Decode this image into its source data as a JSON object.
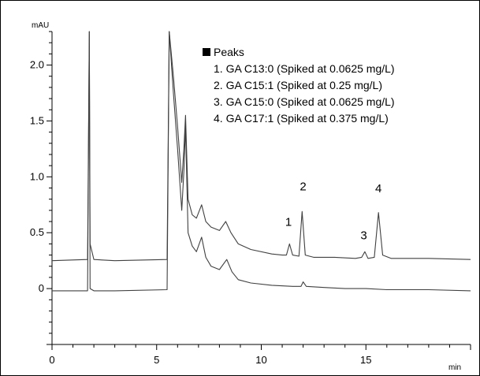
{
  "chart_data": {
    "type": "line",
    "title": "",
    "xlabel": "min",
    "ylabel": "mAU",
    "xlim": [
      0,
      20
    ],
    "ylim": [
      -0.5,
      2.3
    ],
    "x_ticks": [
      0,
      5,
      10,
      15
    ],
    "x_tick_labels": [
      "0",
      "5",
      "10",
      "15"
    ],
    "y_ticks": [
      0,
      0.5,
      1.0,
      1.5,
      2.0
    ],
    "y_tick_labels": [
      "0",
      "0.5",
      "1.0",
      "1.5",
      "2.0"
    ],
    "grid": false,
    "legend": {
      "title": "Peaks",
      "position": "top-right",
      "entries": [
        "1. GA C13:0 (Spiked at 0.0625 mg/L)",
        "2. GA C15:1 (Spiked at 0.25 mg/L)",
        "3. GA C15:0 (Spiked at 0.0625 mg/L)",
        "4. GA C17:1 (Spiked at 0.375 mg/L)"
      ]
    },
    "annotations": [
      {
        "text": "1",
        "x": 11.3,
        "y": 0.56
      },
      {
        "text": "2",
        "x": 12.0,
        "y": 0.88
      },
      {
        "text": "3",
        "x": 14.9,
        "y": 0.44
      },
      {
        "text": "4",
        "x": 15.6,
        "y": 0.86
      }
    ],
    "series": [
      {
        "color": "#404040",
        "x": [
          0,
          1.7,
          1.78,
          1.82,
          2.0,
          3.0,
          5.5,
          5.6,
          5.8,
          6.0,
          6.2,
          6.3,
          6.38,
          6.5,
          6.7,
          6.9,
          7.15,
          7.35,
          7.6,
          8.0,
          8.3,
          8.55,
          8.9,
          9.5,
          10.5,
          11.0,
          11.2,
          11.35,
          11.5,
          11.8,
          11.95,
          12.1,
          12.5,
          13.5,
          14.5,
          14.8,
          14.95,
          15.1,
          15.4,
          15.6,
          15.8,
          16.2,
          17.0,
          18.0,
          20.0
        ],
        "y": [
          0.25,
          0.26,
          2.3,
          0.4,
          0.26,
          0.25,
          0.26,
          2.3,
          1.9,
          1.45,
          0.95,
          1.25,
          1.55,
          0.8,
          0.66,
          0.63,
          0.75,
          0.6,
          0.55,
          0.52,
          0.6,
          0.5,
          0.4,
          0.35,
          0.31,
          0.3,
          0.3,
          0.4,
          0.3,
          0.29,
          0.69,
          0.3,
          0.28,
          0.28,
          0.27,
          0.28,
          0.33,
          0.27,
          0.28,
          0.68,
          0.3,
          0.27,
          0.27,
          0.27,
          0.26
        ]
      },
      {
        "color": "#404040",
        "x": [
          0,
          1.7,
          1.78,
          1.82,
          2.0,
          3.0,
          5.5,
          5.6,
          5.8,
          6.0,
          6.2,
          6.3,
          6.38,
          6.5,
          6.7,
          6.9,
          7.15,
          7.35,
          7.6,
          8.0,
          8.35,
          8.6,
          8.9,
          9.5,
          10.5,
          11.5,
          11.9,
          12.0,
          12.15,
          13.0,
          14.0,
          15.0,
          16.0,
          18.0,
          20.0
        ],
        "y": [
          -0.02,
          -0.02,
          2.3,
          0.0,
          -0.02,
          -0.02,
          -0.01,
          2.3,
          1.75,
          1.25,
          0.7,
          1.05,
          1.45,
          0.5,
          0.38,
          0.33,
          0.46,
          0.28,
          0.2,
          0.17,
          0.26,
          0.15,
          0.08,
          0.05,
          0.03,
          0.02,
          0.02,
          0.06,
          0.02,
          0.01,
          0.0,
          0.0,
          -0.01,
          -0.01,
          -0.02
        ]
      }
    ]
  }
}
